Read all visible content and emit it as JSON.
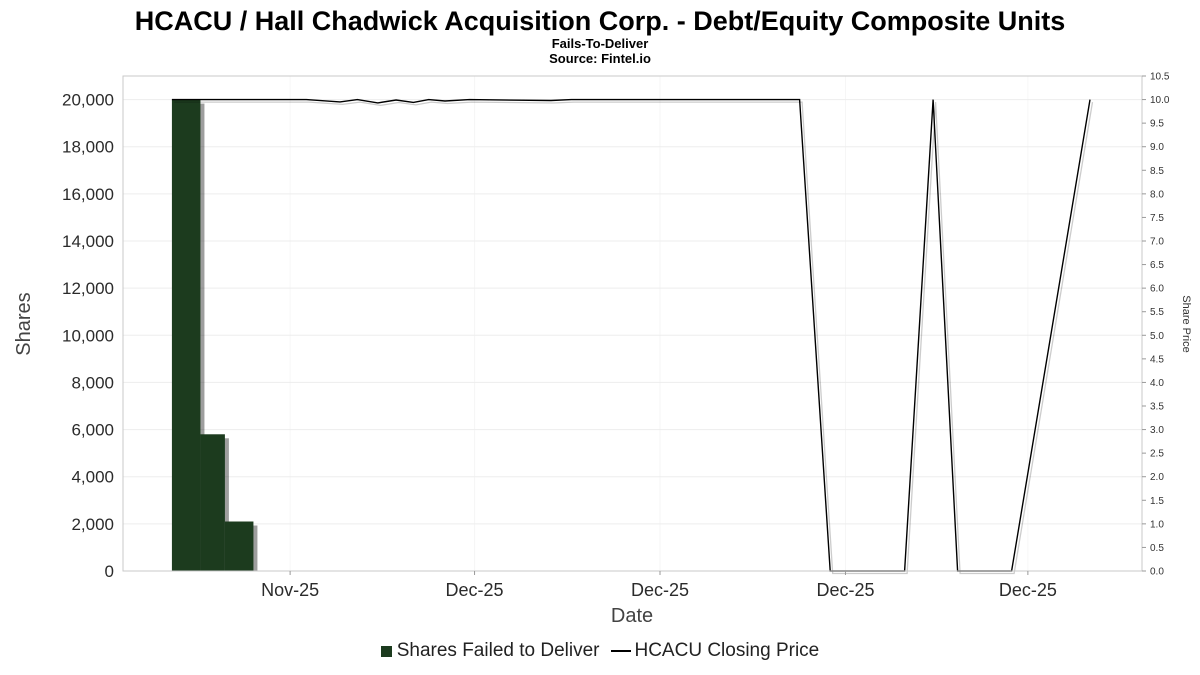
{
  "chart_data": {
    "type": "bar+line",
    "title": "HCACU / Hall Chadwick Acquisition Corp. - Debt/Equity Composite Units",
    "subtitle": "Fails-To-Deliver",
    "source": "Source: Fintel.io",
    "xlabel": "Date",
    "ylabel_left": "Shares",
    "ylabel_right": "Share Price",
    "x_encoding": "fraction-of-plot-width",
    "left_axis": {
      "min": 0,
      "plot_max": 21000,
      "tick_step": 2000,
      "tick_max": 20000
    },
    "right_axis": {
      "min": 0,
      "plot_max": 10.5,
      "tick_step": 0.5,
      "tick_max": 10.5
    },
    "x_ticks": [
      {
        "pos": 0.164,
        "label": "Nov-25"
      },
      {
        "pos": 0.345,
        "label": "Dec-25"
      },
      {
        "pos": 0.527,
        "label": "Dec-25"
      },
      {
        "pos": 0.709,
        "label": "Dec-25"
      },
      {
        "pos": 0.888,
        "label": "Dec-25"
      }
    ],
    "grid": {
      "h_color": "#ededed",
      "v_color": "#f6f6f6",
      "border_color": "#c9c9c9"
    },
    "legend_position": "bottom",
    "series": [
      {
        "name": "Shares Failed to Deliver",
        "type": "bar",
        "axis": "left",
        "color": "#1c3b1e",
        "shadow_color": "rgba(40,40,40,0.45)",
        "bars": [
          {
            "x0": 0.048,
            "x1": 0.076,
            "value": 20000
          },
          {
            "x0": 0.076,
            "x1": 0.1,
            "value": 5800
          },
          {
            "x0": 0.1,
            "x1": 0.128,
            "value": 2100
          }
        ]
      },
      {
        "name": "HCACU Closing Price",
        "type": "line",
        "axis": "right",
        "color": "#000000",
        "shadow_color": "rgba(0,0,0,0.2)",
        "points": [
          [
            0.048,
            10.0
          ],
          [
            0.12,
            10.0
          ],
          [
            0.18,
            10.0
          ],
          [
            0.213,
            9.95
          ],
          [
            0.23,
            10.0
          ],
          [
            0.25,
            9.93
          ],
          [
            0.268,
            9.99
          ],
          [
            0.285,
            9.94
          ],
          [
            0.3,
            10.0
          ],
          [
            0.316,
            9.97
          ],
          [
            0.34,
            10.0
          ],
          [
            0.42,
            9.98
          ],
          [
            0.44,
            10.0
          ],
          [
            0.55,
            10.0
          ],
          [
            0.664,
            10.0
          ],
          [
            0.694,
            0.0
          ],
          [
            0.767,
            0.0
          ],
          [
            0.795,
            10.0
          ],
          [
            0.819,
            0.0
          ],
          [
            0.872,
            0.0
          ],
          [
            0.949,
            10.0
          ]
        ]
      }
    ]
  }
}
